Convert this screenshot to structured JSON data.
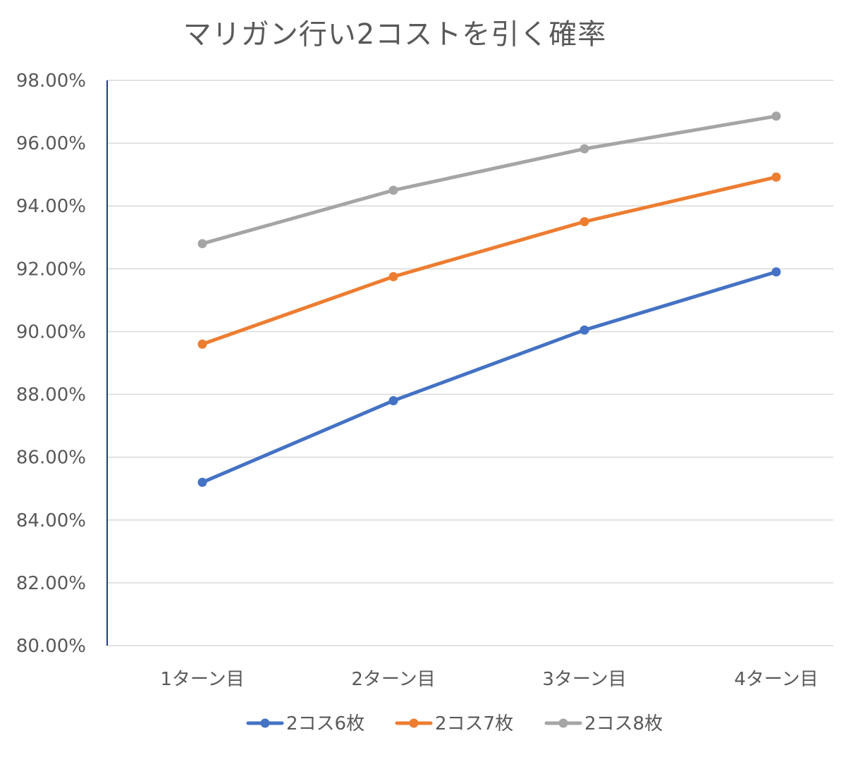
{
  "chart_data": {
    "type": "line",
    "title": "マリガン行い2コストを引く確率",
    "xlabel": "",
    "ylabel": "",
    "categories": [
      "1ターン目",
      "2ターン目",
      "3ターン目",
      "4ターン目"
    ],
    "ylim": [
      80,
      98
    ],
    "y_ticks": [
      80,
      82,
      84,
      86,
      88,
      90,
      92,
      94,
      96,
      98
    ],
    "y_tick_labels": [
      "80.00%",
      "82.00%",
      "84.00%",
      "86.00%",
      "88.00%",
      "90.00%",
      "92.00%",
      "94.00%",
      "96.00%",
      "98.00%"
    ],
    "grid": true,
    "legend_position": "bottom",
    "series": [
      {
        "name": "2コス6枚",
        "color": "#4472c4",
        "values": [
          85.2,
          87.8,
          90.05,
          91.9
        ]
      },
      {
        "name": "2コス7枚",
        "color": "#ed7d31",
        "values": [
          89.6,
          91.75,
          93.5,
          94.92
        ]
      },
      {
        "name": "2コス8枚",
        "color": "#a5a5a5",
        "values": [
          92.8,
          94.5,
          95.82,
          96.86
        ]
      }
    ]
  }
}
